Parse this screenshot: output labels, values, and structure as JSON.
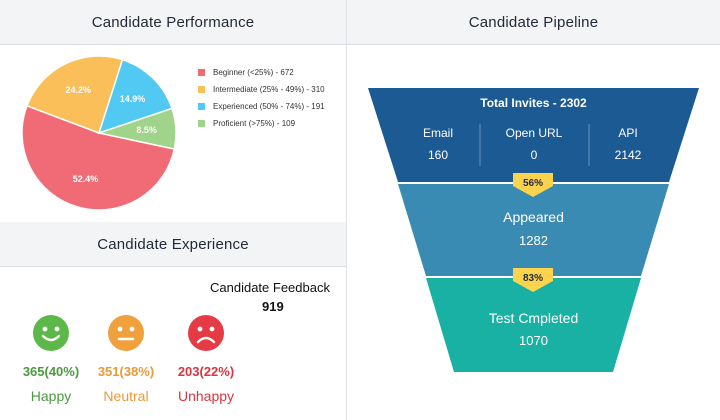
{
  "performance": {
    "title": "Candidate Performance",
    "slices": [
      {
        "label": "Beginner (<25%) - 672",
        "value": 672,
        "percent": "52.4%",
        "color": "#f06b76"
      },
      {
        "label": "Intermediate (25% - 49%) - 310",
        "value": 310,
        "percent": "24.2%",
        "color": "#fbbf5a"
      },
      {
        "label": "Experienced (50% - 74%) - 191",
        "value": 191,
        "percent": "14.9%",
        "color": "#52c9f2"
      },
      {
        "label": "Proficient (>75%) - 109",
        "value": 109,
        "percent": "8.5%",
        "color": "#9fd48a"
      }
    ]
  },
  "chart_data": {
    "type": "pie",
    "categories": [
      "Beginner (<25%)",
      "Intermediate (25% - 49%)",
      "Experienced (50% - 74%)",
      "Proficient (>75%)"
    ],
    "values": [
      672,
      310,
      191,
      109
    ],
    "title": "Candidate Performance"
  },
  "experience": {
    "title": "Candidate Experience",
    "feedback_title": "Candidate Feedback",
    "feedback_count": "919",
    "faces": [
      {
        "value": "365(40%)",
        "label": "Happy",
        "color": "#4a9a3f",
        "face_color": "#5cb848",
        "icon": "happy-face-icon"
      },
      {
        "value": "351(38%)",
        "label": "Neutral",
        "color": "#eb9a37",
        "face_color": "#f0a03c",
        "icon": "neutral-face-icon"
      },
      {
        "value": "203(22%)",
        "label": "Unhappy",
        "color": "#d9343f",
        "face_color": "#e53b45",
        "icon": "unhappy-face-icon"
      }
    ]
  },
  "pipeline": {
    "title": "Candidate Pipeline",
    "invites_title": "Total Invites - 2302",
    "columns": [
      {
        "label": "Email",
        "value": "160"
      },
      {
        "label": "Open URL",
        "value": "0"
      },
      {
        "label": "API",
        "value": "2142"
      }
    ],
    "stage2_label": "Appeared",
    "stage2_value": "1282",
    "stage3_label": "Test Cmpleted",
    "stage3_value": "1070",
    "badge1": "56%",
    "badge2": "83%",
    "colors": {
      "stage1": "#1c5a93",
      "stage2": "#3a8bb3",
      "stage3": "#18b1a4",
      "badge": "#fcd34d"
    }
  }
}
